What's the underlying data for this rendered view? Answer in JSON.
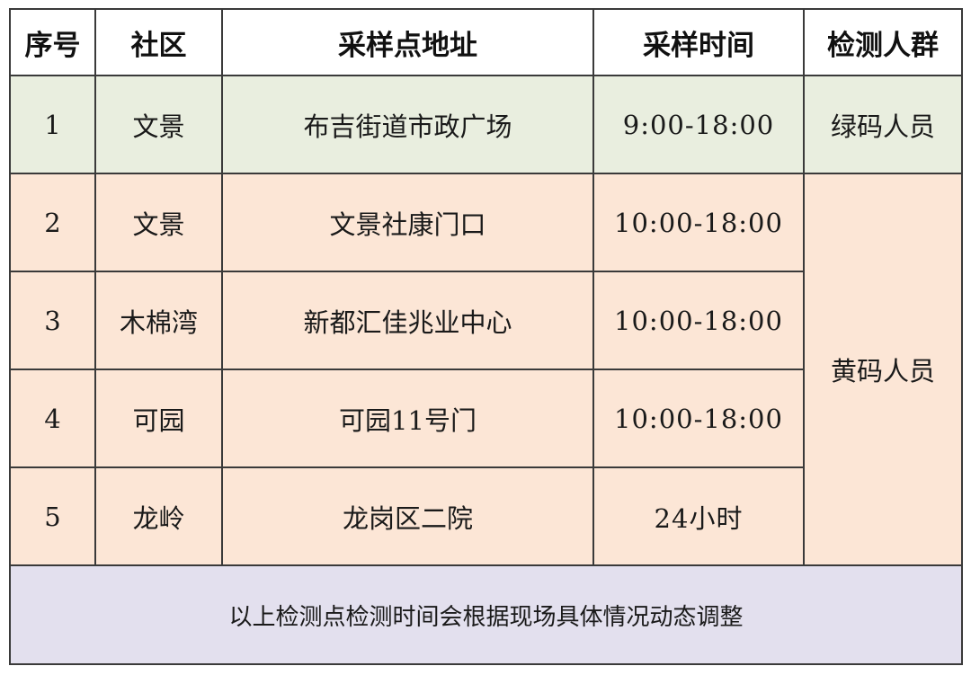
{
  "headers": [
    "序号",
    "社区",
    "采样点地址",
    "采样时间",
    "检测人群"
  ],
  "rows": [
    {
      "no": "1",
      "community": "文景",
      "address": "布吉街道市政广场",
      "time": "9:00-18:00",
      "group": "绿码人员"
    },
    {
      "no": "2",
      "community": "文景",
      "address": "文景社康门口",
      "time": "10:00-18:00",
      "group": "黄码人员"
    },
    {
      "no": "3",
      "community": "木棉湾",
      "address": "新都汇佳兆业中心",
      "time": "10:00-18:00"
    },
    {
      "no": "4",
      "community": "可园",
      "address": "可园11号门",
      "time": "10:00-18:00"
    },
    {
      "no": "5",
      "community": "龙岭",
      "address": "龙岗区二院",
      "time": "24小时"
    }
  ],
  "footer": "以上检测点检测时间会根据现场具体情况动态调整",
  "colors": {
    "green_row": "#e9eedf",
    "peach_rows": "#fce6d6",
    "footer": "#e3e0ee"
  }
}
